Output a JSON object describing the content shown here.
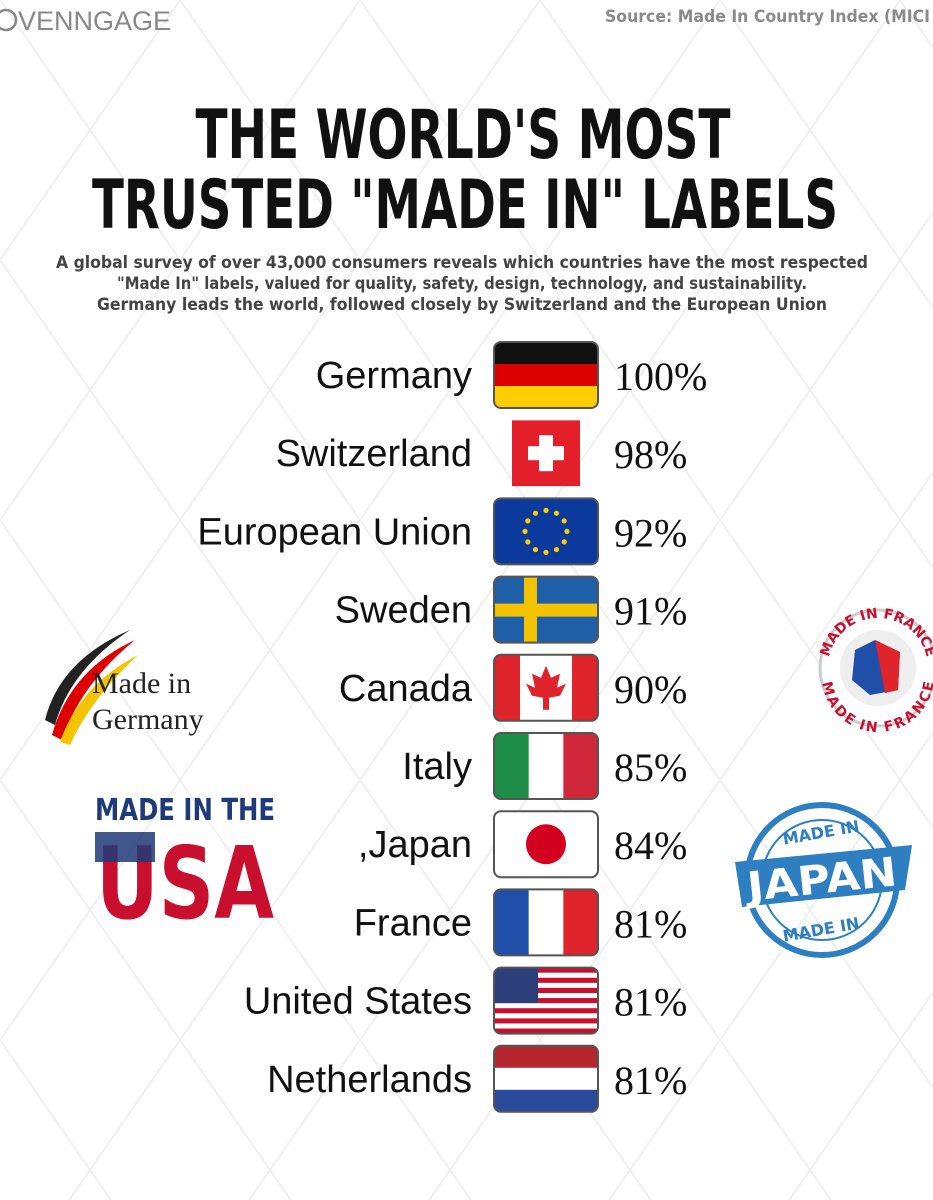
{
  "header": {
    "logo": "VENNGAGE",
    "source": "Source: Made In Country Index (MICI",
    "title": [
      "THE WORLD'S MOST",
      "TRUSTED \"MADE IN\" LABELS"
    ],
    "subtitle": [
      "A global survey of over 43,000 consumers reveals which countries have the most respected",
      "\"Made In\" labels, valued for quality, safety, design, technology, and sustainability.",
      "Germany leads the world, followed closely by Switzerland and the European Union"
    ]
  },
  "items": [
    {
      "country": "Germany",
      "score": "100%"
    },
    {
      "country": "Switzerland",
      "score": "98%"
    },
    {
      "country": "European Union",
      "score": "92%"
    },
    {
      "country": "Sweden",
      "score": "91%"
    },
    {
      "country": "Canada",
      "score": "90%"
    },
    {
      "country": "Italy",
      "score": "85%"
    },
    {
      "country": ",Japan",
      "score": "84%"
    },
    {
      "country": "France",
      "score": "81%"
    },
    {
      "country": "United States",
      "score": "81%"
    },
    {
      "country": "Netherlands",
      "score": "81%"
    }
  ],
  "badges": {
    "germany": [
      "Made in",
      "Germany"
    ],
    "usa": [
      "MADE IN THE",
      "USA"
    ],
    "france": [
      "MADE IN FRANCE",
      "MADE IN FRANCE"
    ],
    "japan": [
      "MADE IN",
      "JAPAN",
      "MADE IN"
    ]
  }
}
